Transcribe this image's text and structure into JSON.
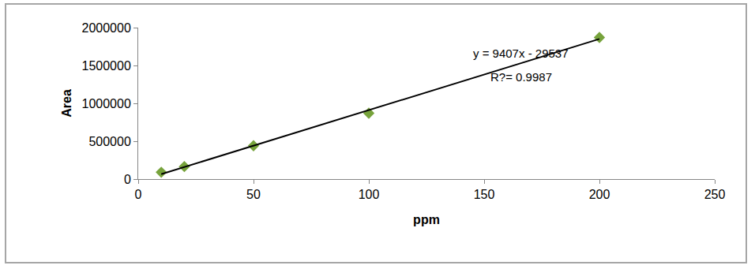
{
  "chart_data": {
    "type": "scatter",
    "x_label": "ppm",
    "y_label": "Area",
    "xlim": [
      0,
      250
    ],
    "xticks": [
      0,
      50,
      100,
      150,
      200,
      250
    ],
    "ylim": [
      0,
      2000000
    ],
    "yticks": [
      0,
      500000,
      1000000,
      1500000,
      2000000
    ],
    "grid": false,
    "annotations": [
      "y = 9407x - 29537",
      "R?= 0.9987"
    ],
    "series": [
      {
        "type": "scatter",
        "marker": "diamond",
        "color": "#77a33c",
        "x": [
          10,
          20,
          50,
          100,
          200
        ],
        "values": [
          90000,
          165000,
          440000,
          870000,
          1870000
        ]
      },
      {
        "type": "line",
        "color": "#000000",
        "x": [
          10,
          200
        ],
        "values": [
          65000,
          1850000
        ]
      }
    ]
  }
}
